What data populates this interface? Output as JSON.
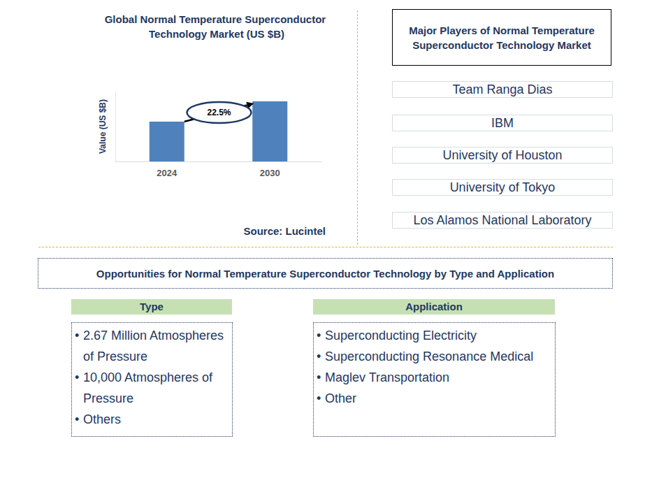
{
  "chart_data": {
    "type": "bar",
    "title": "Global Normal Temperature Superconductor Technology Market (US $B)",
    "y_label": "Value (US $B)",
    "categories": [
      "2024",
      "2030"
    ],
    "values": [
      57,
      86
    ],
    "color": "#4f81bd",
    "ylim": [
      0,
      100
    ],
    "tick_labels": "x",
    "grid": false,
    "annotation": "22.5%",
    "source": "Source: Lucintel"
  },
  "players": {
    "title": "Major Players of Normal Temperature Superconductor Technology Market",
    "items": [
      "Team Ranga Dias",
      "IBM",
      "University of Houston",
      "University of Tokyo",
      "Los Alamos National Laboratory"
    ]
  },
  "opportunities": {
    "title": "Opportunities for Normal Temperature Superconductor Technology by Type and Application",
    "type": {
      "title": "Type",
      "items": [
        "2.67 Million Atmospheres of Pressure",
        "10,000 Atmospheres of Pressure",
        "Others"
      ]
    },
    "application": {
      "title": "Application",
      "items": [
        "Superconducting Electricity",
        "Superconducting Resonance Medical",
        "Maglev Transportation",
        "Other"
      ]
    }
  }
}
